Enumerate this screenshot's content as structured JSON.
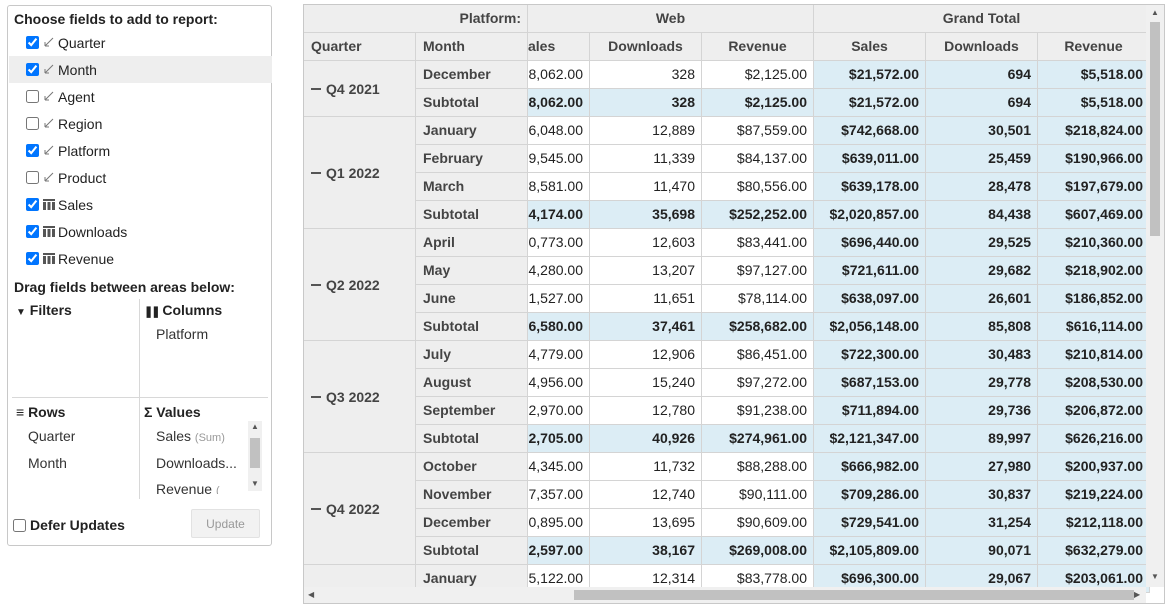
{
  "panel": {
    "choose_title": "Choose fields to add to report:",
    "fields": [
      {
        "label": "Quarter",
        "checked": true,
        "icon": "dimension-icon",
        "highlight": false
      },
      {
        "label": "Month",
        "checked": true,
        "icon": "dimension-icon",
        "highlight": true
      },
      {
        "label": "Agent",
        "checked": false,
        "icon": "dimension-icon",
        "highlight": false
      },
      {
        "label": "Region",
        "checked": false,
        "icon": "dimension-icon",
        "highlight": false
      },
      {
        "label": "Platform",
        "checked": true,
        "icon": "dimension-icon",
        "highlight": false
      },
      {
        "label": "Product",
        "checked": false,
        "icon": "dimension-icon",
        "highlight": false
      },
      {
        "label": "Sales",
        "checked": true,
        "icon": "measure-icon",
        "highlight": false
      },
      {
        "label": "Downloads",
        "checked": true,
        "icon": "measure-icon",
        "highlight": false
      },
      {
        "label": "Revenue",
        "checked": true,
        "icon": "measure-icon",
        "highlight": false
      }
    ],
    "drag_title": "Drag fields between areas below:",
    "filters_title": "Filters",
    "columns_title": "Columns",
    "columns_items": [
      "Platform"
    ],
    "rows_title": "Rows",
    "rows_items": [
      "Quarter",
      "Month"
    ],
    "values_title": "Values",
    "values_items": [
      {
        "name": "Sales",
        "agg": "(Sum)"
      },
      {
        "name": "Downloads...",
        "agg": ""
      },
      {
        "name": "Revenue",
        "agg": "("
      }
    ],
    "defer_label": "Defer Updates",
    "defer_checked": false,
    "update_label": "Update"
  },
  "grid": {
    "platform_label": "Platform:",
    "web_label": "Web",
    "grand_total_label": "Grand Total",
    "quarter_header": "Quarter",
    "month_header": "Month",
    "web_measures": [
      "ales",
      "Downloads",
      "Revenue"
    ],
    "gt_measures": [
      "Sales",
      "Downloads",
      "Revenue"
    ],
    "groups": [
      {
        "quarter": "Q4 2021",
        "rows": [
          {
            "month": "December",
            "web": [
              "8,062.00",
              "328",
              "$2,125.00"
            ],
            "gt": [
              "$21,572.00",
              "694",
              "$5,518.00"
            ]
          },
          {
            "month": "Subtotal",
            "subtotal": true,
            "web": [
              "8,062.00",
              "328",
              "$2,125.00"
            ],
            "gt": [
              "$21,572.00",
              "694",
              "$5,518.00"
            ]
          }
        ]
      },
      {
        "quarter": "Q1 2022",
        "rows": [
          {
            "month": "January",
            "web": [
              "6,048.00",
              "12,889",
              "$87,559.00"
            ],
            "gt": [
              "$742,668.00",
              "30,501",
              "$218,824.00"
            ]
          },
          {
            "month": "February",
            "web": [
              "9,545.00",
              "11,339",
              "$84,137.00"
            ],
            "gt": [
              "$639,011.00",
              "25,459",
              "$190,966.00"
            ]
          },
          {
            "month": "March",
            "web": [
              "8,581.00",
              "11,470",
              "$80,556.00"
            ],
            "gt": [
              "$639,178.00",
              "28,478",
              "$197,679.00"
            ]
          },
          {
            "month": "Subtotal",
            "subtotal": true,
            "web": [
              "4,174.00",
              "35,698",
              "$252,252.00"
            ],
            "gt": [
              "$2,020,857.00",
              "84,438",
              "$607,469.00"
            ]
          }
        ]
      },
      {
        "quarter": "Q2 2022",
        "rows": [
          {
            "month": "April",
            "web": [
              "0,773.00",
              "12,603",
              "$83,441.00"
            ],
            "gt": [
              "$696,440.00",
              "29,525",
              "$210,360.00"
            ]
          },
          {
            "month": "May",
            "web": [
              "4,280.00",
              "13,207",
              "$97,127.00"
            ],
            "gt": [
              "$721,611.00",
              "29,682",
              "$218,902.00"
            ]
          },
          {
            "month": "June",
            "web": [
              "1,527.00",
              "11,651",
              "$78,114.00"
            ],
            "gt": [
              "$638,097.00",
              "26,601",
              "$186,852.00"
            ]
          },
          {
            "month": "Subtotal",
            "subtotal": true,
            "web": [
              "6,580.00",
              "37,461",
              "$258,682.00"
            ],
            "gt": [
              "$2,056,148.00",
              "85,808",
              "$616,114.00"
            ]
          }
        ]
      },
      {
        "quarter": "Q3 2022",
        "rows": [
          {
            "month": "July",
            "web": [
              "4,779.00",
              "12,906",
              "$86,451.00"
            ],
            "gt": [
              "$722,300.00",
              "30,483",
              "$210,814.00"
            ]
          },
          {
            "month": "August",
            "web": [
              "4,956.00",
              "15,240",
              "$97,272.00"
            ],
            "gt": [
              "$687,153.00",
              "29,778",
              "$208,530.00"
            ]
          },
          {
            "month": "September",
            "web": [
              "2,970.00",
              "12,780",
              "$91,238.00"
            ],
            "gt": [
              "$711,894.00",
              "29,736",
              "$206,872.00"
            ]
          },
          {
            "month": "Subtotal",
            "subtotal": true,
            "web": [
              "2,705.00",
              "40,926",
              "$274,961.00"
            ],
            "gt": [
              "$2,121,347.00",
              "89,997",
              "$626,216.00"
            ]
          }
        ]
      },
      {
        "quarter": "Q4 2022",
        "rows": [
          {
            "month": "October",
            "web": [
              "4,345.00",
              "11,732",
              "$88,288.00"
            ],
            "gt": [
              "$666,982.00",
              "27,980",
              "$200,937.00"
            ]
          },
          {
            "month": "November",
            "web": [
              "7,357.00",
              "12,740",
              "$90,111.00"
            ],
            "gt": [
              "$709,286.00",
              "30,837",
              "$219,224.00"
            ]
          },
          {
            "month": "December",
            "web": [
              "0,895.00",
              "13,695",
              "$90,609.00"
            ],
            "gt": [
              "$729,541.00",
              "31,254",
              "$212,118.00"
            ]
          },
          {
            "month": "Subtotal",
            "subtotal": true,
            "web": [
              "2,597.00",
              "38,167",
              "$269,008.00"
            ],
            "gt": [
              "$2,105,809.00",
              "90,071",
              "$632,279.00"
            ]
          }
        ]
      },
      {
        "quarter": "",
        "rows": [
          {
            "month": "January",
            "web": [
              "5,122.00",
              "12,314",
              "$83,778.00"
            ],
            "gt": [
              "$696,300.00",
              "29,067",
              "$203,061.00"
            ]
          }
        ]
      }
    ]
  }
}
